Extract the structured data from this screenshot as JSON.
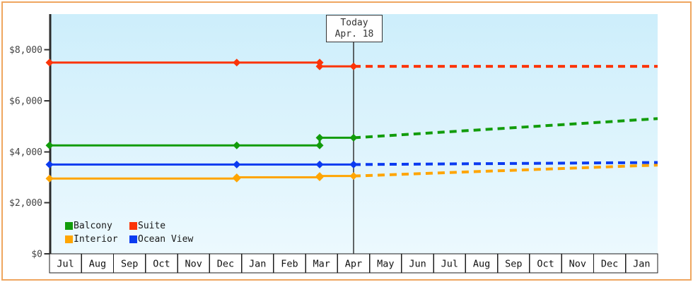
{
  "window": {
    "border_color": "#efa65f",
    "background": "#ffffff"
  },
  "today_marker": {
    "line1": "Today",
    "line2": "Apr. 18"
  },
  "chart_data": {
    "type": "line",
    "title": "",
    "x_months": [
      "Jul",
      "Aug",
      "Sep",
      "Oct",
      "Nov",
      "Dec",
      "Jan",
      "Feb",
      "Mar",
      "Apr",
      "May",
      "Jun",
      "Jul",
      "Aug",
      "Sep",
      "Oct",
      "Nov",
      "Dec",
      "Jan"
    ],
    "y_axis": {
      "min": 0,
      "max": 9400,
      "ticks": [
        {
          "value": 0,
          "label": "$0"
        },
        {
          "value": 2000,
          "label": "$2,000"
        },
        {
          "value": 4000,
          "label": "$4,000"
        },
        {
          "value": 6000,
          "label": "$6,000"
        },
        {
          "value": 8000,
          "label": "$8,000"
        }
      ]
    },
    "today": {
      "month_offset": 9.5
    },
    "plot_bg_top": "#cdeefb",
    "plot_bg_bottom": "#ecf9fe",
    "axis_color": "#2b2b2b",
    "today_line_color": "#333333",
    "series": [
      {
        "name": "Balcony",
        "color": "#129c0b",
        "history": [
          [
            0,
            4250
          ],
          [
            5.85,
            4250
          ],
          [
            8.44,
            4250
          ],
          [
            8.44,
            4550
          ],
          [
            9.5,
            4550
          ]
        ],
        "forecast": [
          [
            9.5,
            4550
          ],
          [
            19,
            5300
          ]
        ]
      },
      {
        "name": "Suite",
        "color": "#fb3408",
        "history": [
          [
            0,
            7500
          ],
          [
            5.85,
            7500
          ],
          [
            8.44,
            7500
          ],
          [
            8.44,
            7350
          ],
          [
            9.5,
            7350
          ]
        ],
        "forecast": [
          [
            9.5,
            7350
          ],
          [
            19,
            7350
          ]
        ]
      },
      {
        "name": "Interior",
        "color": "#ffa502",
        "history": [
          [
            0,
            2950
          ],
          [
            5.85,
            2950
          ],
          [
            5.85,
            3000
          ],
          [
            8.44,
            3000
          ],
          [
            8.44,
            3050
          ],
          [
            9.5,
            3050
          ]
        ],
        "forecast": [
          [
            9.5,
            3050
          ],
          [
            19,
            3480
          ]
        ]
      },
      {
        "name": "Ocean View",
        "color": "#0b3bf0",
        "history": [
          [
            0,
            3500
          ],
          [
            5.85,
            3500
          ],
          [
            8.44,
            3500
          ],
          [
            9.5,
            3500
          ]
        ],
        "forecast": [
          [
            9.5,
            3500
          ],
          [
            19,
            3580
          ]
        ]
      }
    ],
    "legend_order": [
      "Balcony",
      "Suite",
      "Interior",
      "Ocean View"
    ]
  }
}
